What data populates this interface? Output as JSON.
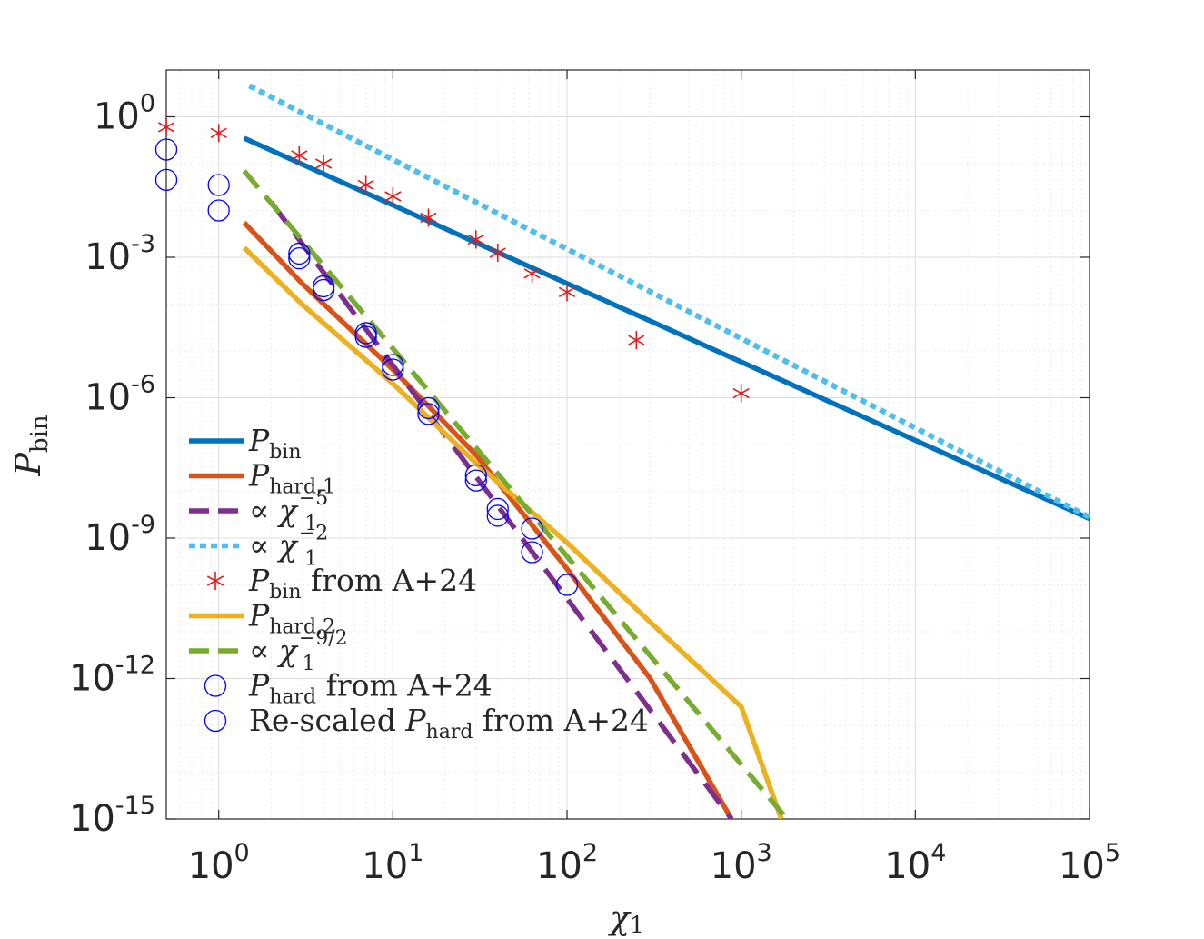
{
  "chart_data": {
    "type": "line",
    "scale": "log-log",
    "xlabel": {
      "base": "χ",
      "sub": "1"
    },
    "ylabel": {
      "base": "P",
      "sub": "bin"
    },
    "xlim": [
      0.5,
      100000
    ],
    "ylim": [
      1e-15,
      10
    ],
    "grid": true,
    "legend_position": "bottom-left",
    "x_ticks": [
      {
        "value": 1,
        "base": "10",
        "exp": "0"
      },
      {
        "value": 10,
        "base": "10",
        "exp": "1"
      },
      {
        "value": 100,
        "base": "10",
        "exp": "2"
      },
      {
        "value": 1000,
        "base": "10",
        "exp": "3"
      },
      {
        "value": 10000,
        "base": "10",
        "exp": "4"
      },
      {
        "value": 100000,
        "base": "10",
        "exp": "5"
      }
    ],
    "y_ticks": [
      {
        "value": 1,
        "base": "10",
        "exp": "0"
      },
      {
        "value": 0.001,
        "base": "10",
        "exp": "-3"
      },
      {
        "value": 1e-06,
        "base": "10",
        "exp": "-6"
      },
      {
        "value": 1e-09,
        "base": "10",
        "exp": "-9"
      },
      {
        "value": 1e-12,
        "base": "10",
        "exp": "-12"
      },
      {
        "value": 1e-15,
        "base": "10",
        "exp": "-15"
      }
    ],
    "series": [
      {
        "name": "P_bin",
        "label_main": "P",
        "label_sub": "bin",
        "label_sup": "",
        "label_prefix": "",
        "label_suffix": "",
        "kind": "line",
        "color": "#0072bd",
        "dash": "",
        "x": [
          1.4,
          100000
        ],
        "y": [
          0.35,
          2.6e-09
        ]
      },
      {
        "name": "P_hard,1",
        "label_main": "P",
        "label_sub": "hard,1",
        "label_sup": "",
        "label_prefix": "",
        "label_suffix": "",
        "kind": "line",
        "color": "#d95319",
        "dash": "",
        "x": [
          1.4,
          3,
          10,
          30,
          100,
          300,
          880
        ],
        "y": [
          0.0055,
          0.00028,
          4e-06,
          6e-08,
          2.2e-10,
          1e-12,
          1e-15
        ]
      },
      {
        "name": "∝ χ1^-5",
        "label_main": "χ",
        "label_sub": "1",
        "label_sup": "−5",
        "label_prefix": "∝ ",
        "label_suffix": "",
        "kind": "line",
        "color": "#7e2f8e",
        "dash": "28,14",
        "x": [
          2,
          880
        ],
        "y": [
          0.015,
          1e-15
        ]
      },
      {
        "name": "∝ χ1^-2",
        "label_main": "χ",
        "label_sub": "1",
        "label_sup": "−2",
        "label_prefix": "∝ ",
        "label_suffix": "",
        "kind": "line",
        "color": "#4dbeee",
        "dash": "7,5",
        "x": [
          1.5,
          100000
        ],
        "y": [
          4.6,
          2.8e-09
        ]
      },
      {
        "name": "P_bin from A+24",
        "label_main": "P",
        "label_sub": "bin",
        "label_sup": "",
        "label_prefix": "",
        "label_suffix": " from A+24",
        "kind": "star",
        "color": "#e31a1c",
        "x": [
          0.5,
          1,
          2.9,
          4,
          7,
          10,
          16,
          30,
          40,
          63,
          100,
          250,
          1000
        ],
        "y": [
          0.6,
          0.45,
          0.15,
          0.1,
          0.035,
          0.02,
          0.007,
          0.0024,
          0.00125,
          0.00045,
          0.00018,
          1.7e-05,
          1.25e-06
        ]
      },
      {
        "name": "P_hard,2",
        "label_main": "P",
        "label_sub": "hard,2",
        "label_sup": "",
        "label_prefix": "",
        "label_suffix": "",
        "kind": "line",
        "color": "#edb120",
        "dash": "",
        "x": [
          1.4,
          3,
          10,
          30,
          100,
          300,
          1000,
          1700
        ],
        "y": [
          0.0016,
          0.0001,
          2e-06,
          4e-08,
          8e-10,
          1.6e-11,
          2.5e-13,
          1e-15
        ]
      },
      {
        "name": "∝ χ1^-9/2",
        "label_main": "χ",
        "label_sub": "1",
        "label_sup": "−9/2",
        "label_prefix": "∝ ",
        "label_suffix": "",
        "kind": "line",
        "color": "#77ac30",
        "dash": "24,12",
        "x": [
          1.4,
          1830
        ],
        "y": [
          0.07,
          1e-15
        ]
      },
      {
        "name": "P_hard from A+24",
        "label_main": "P",
        "label_sub": "hard",
        "label_sup": "",
        "label_prefix": "",
        "label_suffix": " from A+24",
        "kind": "circle",
        "color": "#0000ff",
        "x": [
          0.5,
          1,
          2.9,
          4,
          7,
          10,
          16,
          30,
          40,
          63
        ],
        "y": [
          0.2,
          0.035,
          0.0012,
          0.00024,
          2.4e-05,
          5e-06,
          6e-07,
          2.2e-08,
          4.2e-09,
          1.6e-09
        ]
      },
      {
        "name": "Re-scaled P_hard from A+24",
        "label_main": "P",
        "label_sub": "hard",
        "label_sup": "",
        "label_prefix": "Re-scaled ",
        "label_suffix": " from A+24",
        "kind": "circle",
        "color": "#0000ff",
        "x": [
          0.5,
          1,
          2.9,
          4,
          7,
          10,
          16,
          30,
          40,
          63,
          100
        ],
        "y": [
          0.045,
          0.01,
          0.00095,
          0.0002,
          2e-05,
          4e-06,
          4.5e-07,
          1.7e-08,
          3e-09,
          5e-10,
          1e-10
        ]
      }
    ]
  }
}
